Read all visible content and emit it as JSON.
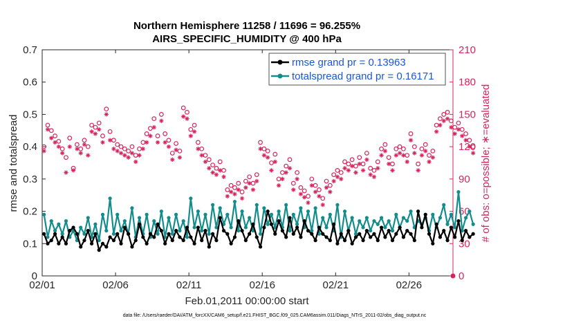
{
  "chart_data": {
    "type": "line",
    "title_line1": "Northern Hemisphere 11258 / 11696 = 96.255%",
    "title_line2": "AIRS_SPECIFIC_HUMIDITY @ 400 hPa",
    "ylabel_left": "rmse and totalspread",
    "ylabel_right": "# of obs: o=possible; ∗=evaluated",
    "xlabel": "Feb.01,2011 00:00:00 start",
    "footer": "data file: /Users/raeder/DAI/ATM_forcXX/CAM6_setup/f.e21.FHIST_BGC.f09_025.CAM6assim.011/Diags_NTrS_2011-02/obs_diag_output.nc",
    "x_range_days": [
      1,
      29
    ],
    "ylim_left": [
      0,
      0.7
    ],
    "ylim_right": [
      0,
      210
    ],
    "yticks_left": [
      "0",
      "0.1",
      "0.2",
      "0.3",
      "0.4",
      "0.5",
      "0.6",
      "0.7"
    ],
    "yticks_right": [
      "0",
      "30",
      "60",
      "90",
      "120",
      "150",
      "180",
      "210"
    ],
    "xticks": [
      {
        "label": "02/01",
        "day": 1
      },
      {
        "label": "02/06",
        "day": 6
      },
      {
        "label": "02/11",
        "day": 11
      },
      {
        "label": "02/16",
        "day": 16
      },
      {
        "label": "02/21",
        "day": 21
      },
      {
        "label": "02/26",
        "day": 26
      }
    ],
    "x_step_days": 0.25,
    "colors": {
      "rmse": "#000000",
      "spread": "#138c8c",
      "obs": "#d6245c",
      "axis": "#262626"
    },
    "series": [
      {
        "name": "rmse",
        "legend": "rmse grand pr = 0.13963",
        "values": [
          0.13,
          0.1,
          0.11,
          0.13,
          0.1,
          0.12,
          0.1,
          0.14,
          0.15,
          0.13,
          0.09,
          0.11,
          0.14,
          0.1,
          0.13,
          0.08,
          0.1,
          0.09,
          0.12,
          0.11,
          0.13,
          0.1,
          0.15,
          0.13,
          0.09,
          0.11,
          0.16,
          0.12,
          0.1,
          0.13,
          0.12,
          0.16,
          0.14,
          0.1,
          0.13,
          0.11,
          0.14,
          0.12,
          0.11,
          0.15,
          0.12,
          0.1,
          0.15,
          0.11,
          0.14,
          0.09,
          0.13,
          0.11,
          0.18,
          0.14,
          0.13,
          0.1,
          0.12,
          0.17,
          0.14,
          0.11,
          0.13,
          0.16,
          0.12,
          0.09,
          0.15,
          0.2,
          0.16,
          0.13,
          0.17,
          0.14,
          0.12,
          0.18,
          0.13,
          0.15,
          0.12,
          0.17,
          0.14,
          0.13,
          0.11,
          0.15,
          0.13,
          0.12,
          0.11,
          0.16,
          0.1,
          0.13,
          0.11,
          0.14,
          0.1,
          0.12,
          0.13,
          0.11,
          0.14,
          0.12,
          0.13,
          0.11,
          0.15,
          0.12,
          0.14,
          0.11,
          0.13,
          0.15,
          0.12,
          0.14,
          0.13,
          0.11,
          0.2,
          0.15,
          0.19,
          0.13,
          0.1,
          0.16,
          0.12,
          0.14,
          0.11,
          0.15,
          0.12,
          0.17,
          0.11,
          0.14,
          0.12,
          0.13
        ]
      },
      {
        "name": "totalspread",
        "legend": "totalspread grand pr = 0.16171",
        "values": [
          0.19,
          0.12,
          0.17,
          0.14,
          0.16,
          0.13,
          0.17,
          0.12,
          0.14,
          0.11,
          0.15,
          0.13,
          0.18,
          0.12,
          0.16,
          0.11,
          0.19,
          0.14,
          0.24,
          0.13,
          0.19,
          0.14,
          0.17,
          0.13,
          0.21,
          0.12,
          0.18,
          0.13,
          0.19,
          0.12,
          0.17,
          0.13,
          0.2,
          0.12,
          0.18,
          0.13,
          0.19,
          0.14,
          0.17,
          0.12,
          0.24,
          0.15,
          0.2,
          0.14,
          0.19,
          0.13,
          0.22,
          0.15,
          0.21,
          0.16,
          0.19,
          0.15,
          0.23,
          0.14,
          0.2,
          0.15,
          0.18,
          0.14,
          0.22,
          0.13,
          0.21,
          0.16,
          0.19,
          0.15,
          0.2,
          0.15,
          0.22,
          0.14,
          0.19,
          0.16,
          0.21,
          0.15,
          0.2,
          0.14,
          0.21,
          0.13,
          0.18,
          0.15,
          0.19,
          0.14,
          0.22,
          0.12,
          0.2,
          0.14,
          0.18,
          0.13,
          0.17,
          0.15,
          0.18,
          0.14,
          0.17,
          0.16,
          0.18,
          0.15,
          0.17,
          0.14,
          0.19,
          0.15,
          0.18,
          0.17,
          0.2,
          0.15,
          0.17,
          0.16,
          0.18,
          0.14,
          0.19,
          0.15,
          0.18,
          0.22,
          0.16,
          0.19,
          0.15,
          0.26,
          0.14,
          0.18,
          0.2,
          0.16
        ]
      },
      {
        "name": "obs_possible",
        "marker": "o",
        "values": [
          120,
          140,
          135,
          130,
          125,
          118,
          110,
          128,
          100,
          122,
          118,
          126,
          120,
          140,
          138,
          142,
          130,
          155,
          134,
          126,
          122,
          120,
          118,
          116,
          120,
          112,
          118,
          124,
          132,
          137,
          146,
          130,
          150,
          132,
          126,
          114,
          123,
          116,
          156,
          152,
          136,
          140,
          124,
          118,
          112,
          108,
          103,
          100,
          106,
          98,
          80,
          84,
          82,
          86,
          78,
          88,
          92,
          86,
          94,
          124,
          118,
          116,
          105,
          113,
          90,
          96,
          102,
          108,
          86,
          96,
          82,
          79,
          74,
          90,
          84,
          80,
          72,
          88,
          84,
          94,
          98,
          96,
          106,
          104,
          108,
          102,
          110,
          104,
          114,
          100,
          98,
          106,
          118,
          122,
          110,
          104,
          118,
          120,
          118,
          112,
          132,
          120,
          104,
          118,
          122,
          112,
          116,
          140,
          146,
          150,
          152,
          144,
          138,
          142,
          136,
          132,
          126,
          120
        ]
      },
      {
        "name": "obs_evaluated",
        "marker": "*",
        "values": [
          116,
          136,
          128,
          124,
          120,
          114,
          96,
          120,
          98,
          118,
          114,
          122,
          112,
          134,
          132,
          136,
          124,
          150,
          126,
          118,
          116,
          114,
          112,
          110,
          114,
          106,
          112,
          118,
          124,
          130,
          138,
          124,
          144,
          124,
          120,
          108,
          117,
          110,
          148,
          146,
          130,
          134,
          118,
          112,
          106,
          100,
          96,
          94,
          98,
          92,
          74,
          78,
          76,
          80,
          72,
          82,
          86,
          80,
          88,
          118,
          112,
          110,
          98,
          106,
          84,
          90,
          96,
          100,
          80,
          90,
          76,
          73,
          68,
          84,
          78,
          74,
          66,
          82,
          78,
          88,
          92,
          90,
          100,
          98,
          102,
          96,
          104,
          98,
          108,
          94,
          92,
          100,
          112,
          116,
          104,
          98,
          112,
          114,
          112,
          106,
          126,
          114,
          98,
          112,
          116,
          106,
          110,
          134,
          140,
          144,
          146,
          138,
          132,
          136,
          130,
          126,
          120,
          114
        ]
      }
    ]
  }
}
